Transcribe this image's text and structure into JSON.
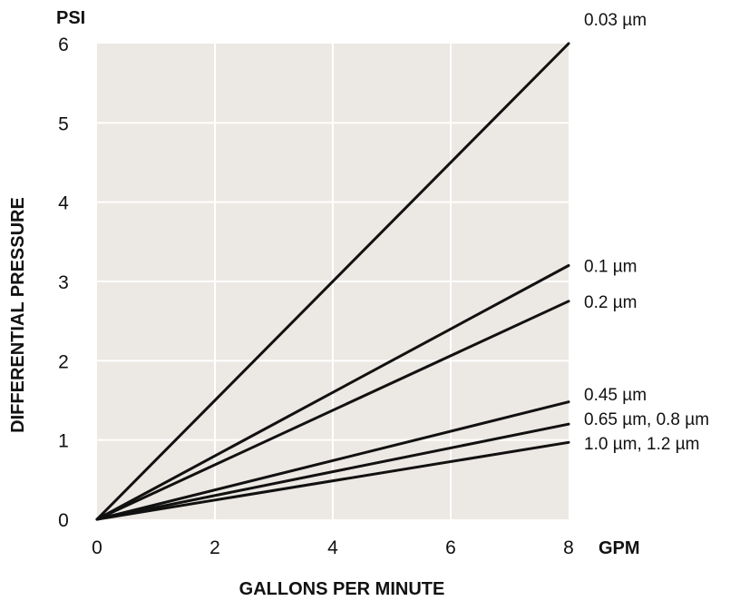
{
  "chart_data": {
    "type": "line",
    "xlabel": "GALLONS PER MINUTE",
    "ylabel": "DIFFERENTIAL PRESSURE",
    "x_unit": "GPM",
    "y_unit": "PSI",
    "xlim": [
      0,
      8
    ],
    "ylim": [
      0,
      6
    ],
    "xticks": [
      "0",
      "2",
      "4",
      "6",
      "8"
    ],
    "yticks": [
      "0",
      "1",
      "2",
      "3",
      "4",
      "5",
      "6"
    ],
    "grid": true,
    "colors": {
      "plot_background": "#ece8e3",
      "grid": "#ffffff",
      "line": "#111111"
    },
    "series": [
      {
        "name": "0.03 µm",
        "x": [
          0,
          8
        ],
        "y": [
          0,
          6.0
        ]
      },
      {
        "name": "0.1 µm",
        "x": [
          0,
          8
        ],
        "y": [
          0,
          3.2
        ]
      },
      {
        "name": "0.2 µm",
        "x": [
          0,
          8
        ],
        "y": [
          0,
          2.75
        ]
      },
      {
        "name": "0.45 µm",
        "x": [
          0,
          8
        ],
        "y": [
          0,
          1.48
        ]
      },
      {
        "name": "0.65 µm,  0.8 µm",
        "x": [
          0,
          8
        ],
        "y": [
          0,
          1.2
        ]
      },
      {
        "name": "1.0 µm, 1.2 µm",
        "x": [
          0,
          8
        ],
        "y": [
          0,
          0.97
        ]
      }
    ]
  }
}
